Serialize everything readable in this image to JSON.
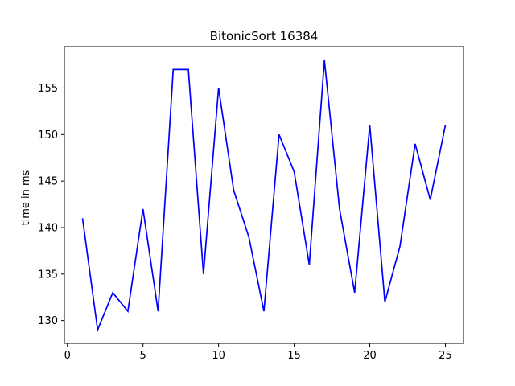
{
  "chart_data": {
    "type": "line",
    "title": "BitonicSort 16384",
    "xlabel": "",
    "ylabel": "time in ms",
    "xlim": [
      -0.2,
      26.2
    ],
    "ylim": [
      127.55,
      159.45
    ],
    "xticks": [
      0,
      5,
      10,
      15,
      20,
      25
    ],
    "yticks": [
      130,
      135,
      140,
      145,
      150,
      155
    ],
    "grid": false,
    "series": [
      {
        "color": "#0000ff",
        "x": [
          1,
          2,
          3,
          4,
          5,
          6,
          7,
          8,
          9,
          10,
          11,
          12,
          13,
          14,
          15,
          16,
          17,
          18,
          19,
          20,
          21,
          22,
          23,
          24,
          25
        ],
        "y": [
          141,
          129,
          133,
          131,
          142,
          131,
          157,
          157,
          135,
          155,
          144,
          139,
          131,
          150,
          146,
          136,
          158,
          142,
          133,
          151,
          132,
          138,
          149,
          143,
          151
        ]
      }
    ]
  }
}
